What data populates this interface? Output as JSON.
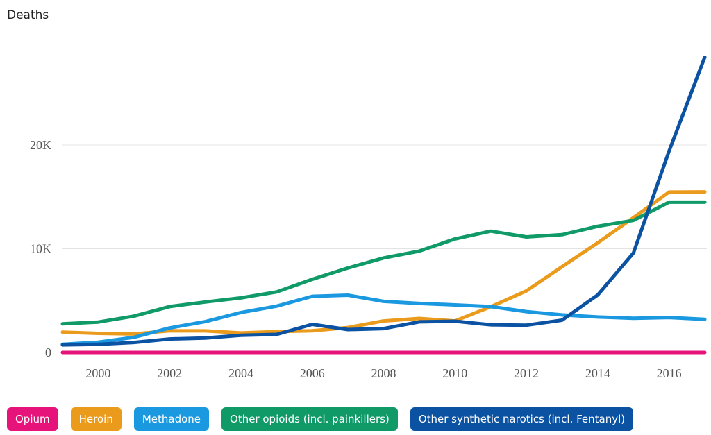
{
  "chart_data": {
    "type": "line",
    "ylabel": "Deaths",
    "x": [
      1999,
      2000,
      2001,
      2002,
      2003,
      2004,
      2005,
      2006,
      2007,
      2008,
      2009,
      2010,
      2011,
      2012,
      2013,
      2014,
      2015,
      2016,
      2017
    ],
    "xticks": [
      "2000",
      "2002",
      "2004",
      "2006",
      "2008",
      "2010",
      "2012",
      "2014",
      "2016"
    ],
    "yticks": [
      "0",
      "10K",
      "20K"
    ],
    "ylim": [
      0,
      30000
    ],
    "grid": true,
    "legend_position": "bottom",
    "series": [
      {
        "name": "Opium",
        "color": "#e6147a",
        "values": [
          0,
          0,
          0,
          0,
          0,
          0,
          0,
          0,
          0,
          0,
          0,
          0,
          0,
          0,
          0,
          0,
          0,
          0,
          0
        ]
      },
      {
        "name": "Heroin",
        "color": "#eb9b1b",
        "values": [
          1960,
          1840,
          1780,
          2090,
          2080,
          1880,
          2010,
          2090,
          2400,
          3040,
          3280,
          3040,
          4400,
          5930,
          8260,
          10570,
          12990,
          15460,
          15480
        ]
      },
      {
        "name": "Methadone",
        "color": "#1a98e0",
        "values": [
          780,
          990,
          1460,
          2360,
          2970,
          3850,
          4460,
          5410,
          5520,
          4920,
          4720,
          4580,
          4420,
          3940,
          3620,
          3420,
          3300,
          3370,
          3190
        ]
      },
      {
        "name": "Other opioids (incl. painkillers)",
        "color": "#109a68",
        "values": [
          2760,
          2930,
          3500,
          4420,
          4860,
          5260,
          5830,
          7050,
          8140,
          9110,
          9770,
          10940,
          11690,
          11140,
          11350,
          12160,
          12730,
          14490,
          14490
        ]
      },
      {
        "name": "Other synthetic narotics (incl. Fentanyl)",
        "color": "#0c52a3",
        "values": [
          730,
          780,
          960,
          1300,
          1390,
          1660,
          1740,
          2710,
          2210,
          2300,
          2950,
          3010,
          2670,
          2630,
          3110,
          5540,
          9580,
          19410,
          28470
        ]
      }
    ]
  }
}
